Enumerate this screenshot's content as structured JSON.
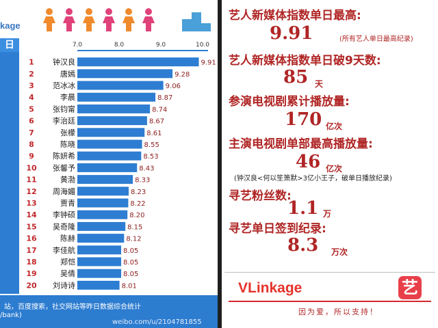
{
  "left_panel": {
    "brand_fragment": "kage",
    "side_header": "日",
    "footer": {
      "line1": "站，百度搜索，社交网站等昨日数据综合统计",
      "line2": "/bank)",
      "watermark": "weibo.com/u/2104781855"
    }
  },
  "chart_data": {
    "type": "bar",
    "orientation": "horizontal",
    "title": "",
    "xlabel": "",
    "ylabel": "",
    "xlim": [
      7.0,
      10.0
    ],
    "xticks": [
      "7.0",
      "8.0",
      "9.0",
      "10.0"
    ],
    "ranks": [
      "1",
      "2",
      "3",
      "4",
      "5",
      "6",
      "7",
      "8",
      "9",
      "10",
      "11",
      "12",
      "13",
      "14",
      "15",
      "16",
      "17",
      "18",
      "19",
      "20"
    ],
    "categories": [
      "钟汉良",
      "唐嫣",
      "范冰冰",
      "李晨",
      "张钧甯",
      "李治廷",
      "张檬",
      "陈晓",
      "陈妍希",
      "张馨予",
      "黄渤",
      "周海媚",
      "贾青",
      "李钟硕",
      "吴奇隆",
      "陈赫",
      "李佳航",
      "郑恺",
      "吴倩",
      "刘诗诗"
    ],
    "values": [
      9.91,
      9.28,
      9.06,
      8.87,
      8.74,
      8.67,
      8.61,
      8.55,
      8.53,
      8.43,
      8.33,
      8.23,
      8.22,
      8.2,
      8.15,
      8.12,
      8.05,
      8.05,
      8.05,
      8.01
    ],
    "value_labels": [
      "9.91",
      "9.28",
      "9.06",
      "8.87",
      "8.74",
      "8.67",
      "8.61",
      "8.55",
      "8.53",
      "8.43",
      "8.33",
      "8.23",
      "8.22",
      "8.20",
      "8.15",
      "8.12",
      "8.05",
      "8.05",
      "8.05",
      "8.01"
    ],
    "colors": {
      "bar": "#2d7dd2",
      "value_text": "#8a1c1c",
      "rank_text": "#c0282c",
      "name_text": "#1a1a1a"
    }
  },
  "right_panel": {
    "stat1": {
      "label": "艺人新媒体指数单日最高:",
      "value": "9.91",
      "note": "(所有艺人单日最高纪录)"
    },
    "stat2": {
      "label": "艺人新媒体指数单日破9天数:",
      "value": "85",
      "unit": "天"
    },
    "stat3": {
      "label": "参演电视剧累计播放量:",
      "value": "170",
      "unit": "亿次"
    },
    "stat4": {
      "label": "主演电视剧单部最高播放量:",
      "value": "46",
      "unit": "亿次",
      "note": "(钟汉良<何以笙箫默>3亿小王子，破单日播放纪录)"
    },
    "stat5": {
      "label": "寻艺粉丝数:",
      "value": "1.1",
      "unit": "万"
    },
    "stat6": {
      "label": "寻艺单日签到纪录:",
      "value": "8.3",
      "unit": "万次"
    },
    "logo": "VLinkage",
    "app_icon": "艺",
    "slogan": "因为爱，所以支持！",
    "colors": {
      "accent": "#b02525",
      "logo": "#e5332a"
    }
  }
}
